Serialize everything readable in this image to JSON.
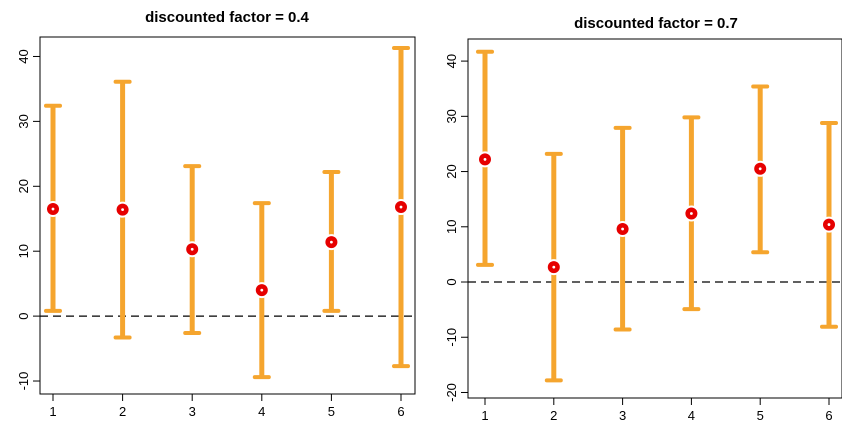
{
  "chart_data": [
    {
      "type": "error-bar",
      "title": "discounted factor = 0.4",
      "xlabel": "",
      "ylabel": "",
      "categories": [
        "1",
        "2",
        "3",
        "4",
        "5",
        "6"
      ],
      "values": [
        16.5,
        16.4,
        10.3,
        4.0,
        11.4,
        16.8
      ],
      "lower": [
        0.8,
        -3.3,
        -2.6,
        -9.4,
        0.8,
        -7.7
      ],
      "upper": [
        32.4,
        36.1,
        23.1,
        17.4,
        22.2,
        41.3
      ],
      "ylim": [
        -12,
        43
      ],
      "yticks": [
        -10,
        0,
        10,
        20,
        30,
        40
      ],
      "reference_line": 0,
      "colors": {
        "interval": "#F5A52E",
        "point": "#E60000",
        "point_center": "#ffffff",
        "reference": "#000000"
      }
    },
    {
      "type": "error-bar",
      "title": "discounted factor = 0.7",
      "xlabel": "",
      "ylabel": "",
      "categories": [
        "1",
        "2",
        "3",
        "4",
        "5",
        "6"
      ],
      "values": [
        22.2,
        2.7,
        9.6,
        12.4,
        20.5,
        10.4
      ],
      "lower": [
        3.1,
        -17.8,
        -8.6,
        -4.9,
        5.4,
        -8.1
      ],
      "upper": [
        41.7,
        23.2,
        27.9,
        29.8,
        35.4,
        28.8
      ],
      "ylim": [
        -21,
        44
      ],
      "yticks": [
        -20,
        -10,
        0,
        10,
        20,
        30,
        40
      ],
      "reference_line": 0,
      "colors": {
        "interval": "#F5A52E",
        "point": "#E60000",
        "point_center": "#ffffff",
        "reference": "#000000"
      }
    }
  ]
}
